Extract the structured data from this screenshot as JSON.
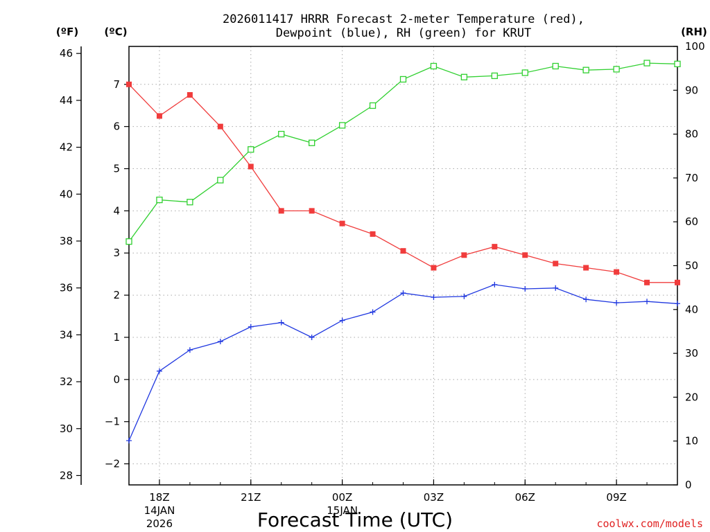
{
  "chart_data": {
    "type": "line",
    "title_line1": "2026011417 HRRR Forecast 2-meter Temperature (red),",
    "title_line2": "Dewpoint (blue), RH (green) for KRUT",
    "xlabel": "Forecast Time (UTC)",
    "credit": "coolwx.com/models",
    "left_outer_axis": {
      "unit": "(ºF)",
      "ticks": [
        "46",
        "44",
        "42",
        "40",
        "38",
        "36",
        "34",
        "32",
        "30",
        "28"
      ],
      "ylim": [
        27.6,
        46.3
      ]
    },
    "left_axis": {
      "unit": "(ºC)",
      "ticks": [
        "7",
        "6",
        "5",
        "4",
        "3",
        "2",
        "1",
        "0",
        "−1",
        "−2"
      ],
      "ylim": [
        -2.5,
        7.9
      ]
    },
    "right_axis": {
      "unit": "(RH)",
      "ticks": [
        "100",
        "90",
        "80",
        "70",
        "60",
        "50",
        "40",
        "30",
        "20",
        "10",
        "0"
      ],
      "ylim": [
        0,
        100
      ]
    },
    "x_ticks": [
      {
        "hour": 1,
        "line1": "18Z",
        "line2": "14JAN",
        "line3": "2026"
      },
      {
        "hour": 4,
        "line1": "21Z",
        "line2": "",
        "line3": ""
      },
      {
        "hour": 7,
        "line1": "00Z",
        "line2": "15JAN",
        "line3": ""
      },
      {
        "hour": 10,
        "line1": "03Z",
        "line2": "",
        "line3": ""
      },
      {
        "hour": 13,
        "line1": "06Z",
        "line2": "",
        "line3": ""
      },
      {
        "hour": 16,
        "line1": "09Z",
        "line2": "",
        "line3": ""
      }
    ],
    "x_range_hours": [
      0,
      18
    ],
    "series": [
      {
        "name": "2-meter Temperature",
        "axis": "celsius",
        "color": "#f03c3c",
        "marker": "filled-square",
        "x": [
          0,
          1,
          2,
          3,
          4,
          5,
          6,
          7,
          8,
          9,
          10,
          11,
          12,
          13,
          14,
          15,
          16,
          17,
          18
        ],
        "values": [
          7.0,
          6.25,
          6.75,
          6.0,
          5.05,
          4.0,
          4.0,
          3.7,
          3.45,
          3.05,
          2.65,
          2.95,
          3.15,
          2.95,
          2.75,
          2.65,
          2.55,
          2.3,
          2.3
        ]
      },
      {
        "name": "Dewpoint",
        "axis": "celsius",
        "color": "#2038e0",
        "marker": "plus",
        "x": [
          0,
          1,
          2,
          3,
          4,
          5,
          6,
          7,
          8,
          9,
          10,
          11,
          12,
          13,
          14,
          15,
          16,
          17,
          18
        ],
        "values": [
          -1.45,
          0.2,
          0.7,
          0.9,
          1.25,
          1.35,
          1.0,
          1.4,
          1.6,
          2.05,
          1.95,
          1.97,
          2.25,
          2.15,
          2.17,
          1.9,
          1.82,
          1.85,
          1.8
        ]
      },
      {
        "name": "RH",
        "axis": "rh",
        "color": "#30d030",
        "marker": "open-square",
        "x": [
          0,
          1,
          2,
          3,
          4,
          5,
          6,
          7,
          8,
          9,
          10,
          11,
          12,
          13,
          14,
          15,
          16,
          17,
          18
        ],
        "values": [
          55.5,
          65.0,
          64.5,
          69.5,
          76.5,
          80.0,
          78.0,
          82.0,
          86.5,
          92.5,
          95.5,
          93.0,
          93.3,
          94.0,
          95.5,
          94.6,
          94.8,
          96.2,
          96.0
        ]
      }
    ]
  }
}
